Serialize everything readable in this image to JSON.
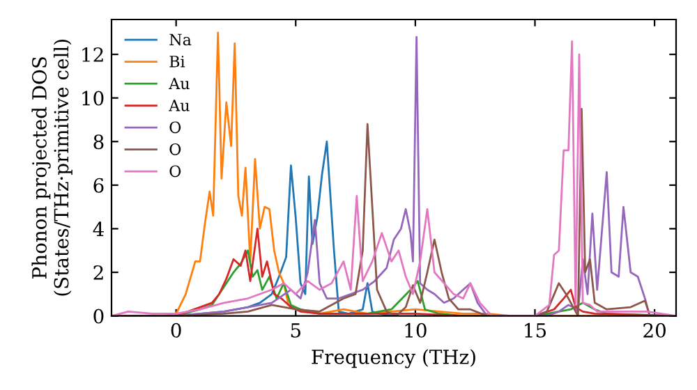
{
  "chart_data": {
    "type": "line",
    "xlabel": "Frequency (THz)",
    "ylabel": "Phonon projected DOS\n(States/THz·primitive cell)",
    "xlim": [
      -2.7,
      20.9
    ],
    "ylim": [
      0,
      13.6
    ],
    "xticks": [
      0,
      5,
      10,
      15,
      20
    ],
    "yticks": [
      0,
      2,
      4,
      6,
      8,
      10,
      12
    ],
    "grid": false,
    "legend": "top left",
    "marker": "none",
    "line_style": "solid",
    "series": [
      {
        "name": "Na",
        "color": "#1f77b4",
        "x": [
          -2.7,
          0,
          2,
          3,
          3.5,
          4,
          4.3,
          4.6,
          4.8,
          5.0,
          5.2,
          5.4,
          5.55,
          5.7,
          5.9,
          6.1,
          6.3,
          6.6,
          6.8,
          7.2,
          7.8,
          8.0,
          8.2,
          8.5,
          9
        ],
        "values": [
          0,
          0,
          0.2,
          0.4,
          0.6,
          1.0,
          1.8,
          2.7,
          6.9,
          4.5,
          1.5,
          1.0,
          6.4,
          3.3,
          4.5,
          6.5,
          8.0,
          3.0,
          0.2,
          0.1,
          0.3,
          1.5,
          0.2,
          0.1,
          0
        ]
      },
      {
        "name": "Bi",
        "color": "#ff7f0e",
        "x": [
          -2.7,
          -0.5,
          0,
          0.4,
          0.8,
          1.0,
          1.2,
          1.4,
          1.55,
          1.75,
          1.9,
          2.1,
          2.3,
          2.45,
          2.6,
          2.75,
          2.9,
          3.1,
          3.3,
          3.5,
          3.7,
          3.9,
          4.1,
          4.3,
          4.5,
          4.7,
          5.0,
          5.5,
          6.0,
          7,
          8,
          9,
          10,
          11,
          12,
          13,
          14,
          20.9
        ],
        "values": [
          0,
          0,
          0.1,
          1.0,
          2.5,
          2.5,
          4.2,
          5.7,
          4.6,
          13.0,
          6.3,
          9.8,
          7.8,
          12.5,
          5.5,
          4.6,
          6.8,
          2.5,
          7.2,
          4.0,
          5.0,
          4.9,
          3.0,
          2.0,
          1.5,
          0.5,
          0.3,
          0.2,
          0.1,
          0.3,
          0.1,
          0.2,
          0.3,
          0.2,
          0.1,
          0.1,
          0,
          0
        ]
      },
      {
        "name": "Au",
        "color": "#2ca02c",
        "x": [
          -2.7,
          0,
          1,
          1.5,
          1.8,
          2.1,
          2.4,
          2.7,
          3.0,
          3.2,
          3.4,
          3.6,
          3.9,
          4.2,
          4.5,
          4.8,
          5.2,
          5.6,
          6.0,
          7,
          8,
          9,
          9.8,
          10.1,
          10.4,
          11,
          12,
          15,
          16,
          16.5,
          17,
          17.5,
          18,
          20.9
        ],
        "values": [
          0,
          0,
          0.3,
          0.5,
          1.0,
          1.5,
          2.0,
          2.4,
          3.0,
          1.8,
          2.1,
          1.2,
          1.8,
          0.8,
          1.5,
          0.5,
          0.3,
          0.2,
          0.1,
          0.1,
          0.1,
          0.3,
          1.2,
          1.6,
          0.3,
          0.1,
          0,
          0,
          0.2,
          0.3,
          0.6,
          0.3,
          0.1,
          0
        ]
      },
      {
        "name": "Au",
        "color": "#d62728",
        "x": [
          -2.7,
          0,
          0.5,
          1,
          1.5,
          1.8,
          2.1,
          2.4,
          2.7,
          2.9,
          3.1,
          3.4,
          3.6,
          3.8,
          4.1,
          4.4,
          4.8,
          5.2,
          6,
          8,
          10,
          12,
          15,
          15.8,
          16.2,
          16.5,
          16.7,
          17,
          17.5,
          20.9
        ],
        "values": [
          0,
          0,
          0.2,
          0.4,
          0.6,
          1.0,
          1.7,
          2.6,
          2.3,
          3.0,
          1.6,
          4.0,
          1.8,
          2.5,
          1.0,
          0.8,
          0.4,
          0.2,
          0.1,
          0.1,
          0.1,
          0,
          0,
          0.3,
          0.8,
          1.2,
          0.4,
          0.2,
          0.1,
          0
        ]
      },
      {
        "name": "O",
        "color": "#9467bd",
        "x": [
          -2.7,
          0,
          2,
          3,
          4,
          4.8,
          5.2,
          5.5,
          5.8,
          6.0,
          6.3,
          6.8,
          7.3,
          7.8,
          8.3,
          8.8,
          9.1,
          9.4,
          9.6,
          9.8,
          9.9,
          10.05,
          10.2,
          10.5,
          10.8,
          11.2,
          11.6,
          12.0,
          12.3,
          12.6,
          13.0,
          15.5,
          16.0,
          16.4,
          16.6,
          16.8,
          17.0,
          17.2,
          17.4,
          17.6,
          18.0,
          18.2,
          18.5,
          18.7,
          19.0,
          19.3,
          19.6,
          19.8,
          20.9
        ],
        "values": [
          0,
          0,
          0.2,
          0.4,
          0.6,
          1.2,
          0.8,
          2.0,
          4.4,
          1.5,
          0.8,
          0.8,
          1.0,
          1.2,
          1.6,
          2.2,
          3.5,
          4.0,
          4.9,
          3.8,
          2.5,
          12.8,
          1.5,
          1.2,
          1.0,
          0.6,
          0.8,
          1.2,
          1.5,
          0.6,
          0,
          0,
          0.2,
          0.5,
          0.4,
          0.2,
          2.6,
          1.0,
          4.7,
          1.2,
          6.6,
          2.0,
          1.8,
          5.0,
          2.0,
          1.8,
          0.8,
          0,
          0
        ]
      },
      {
        "name": "O",
        "color": "#8c564b",
        "x": [
          -2.7,
          0,
          2,
          3,
          4,
          5,
          6,
          7,
          7.5,
          7.8,
          8.0,
          8.2,
          8.4,
          8.8,
          9.2,
          9.6,
          9.9,
          10.2,
          10.5,
          10.8,
          11.1,
          11.4,
          11.8,
          12.3,
          13,
          15,
          15.5,
          16.0,
          16.3,
          16.6,
          16.8,
          16.95,
          17.1,
          17.3,
          17.5,
          18,
          19,
          19.6,
          19.8,
          20.9
        ],
        "values": [
          0,
          0,
          0.1,
          0.2,
          0.5,
          0.3,
          0.2,
          0.8,
          1.0,
          3.0,
          8.8,
          5.0,
          1.2,
          0.2,
          0,
          0.4,
          1.4,
          0.6,
          2.0,
          3.5,
          2.0,
          0.8,
          0.3,
          0.3,
          0,
          0,
          0.2,
          1.5,
          1.0,
          0.4,
          0,
          9.5,
          2.0,
          2.6,
          0.6,
          0.3,
          0.4,
          0.7,
          0,
          0
        ]
      },
      {
        "name": "O",
        "color": "#e377c2",
        "x": [
          -2.7,
          -2,
          -1,
          0,
          1,
          2,
          3,
          4,
          4.5,
          5,
          5.5,
          6,
          6.5,
          7.0,
          7.3,
          7.55,
          7.8,
          8.2,
          8.6,
          9.0,
          9.3,
          9.6,
          9.9,
          10.2,
          10.5,
          10.8,
          11.2,
          11.6,
          12,
          12.3,
          12.7,
          13.2,
          15,
          15.6,
          15.8,
          16.0,
          16.2,
          16.4,
          16.55,
          16.7,
          16.85,
          17.0,
          17.3,
          17.6,
          18,
          19,
          19.7,
          20.9
        ],
        "values": [
          0,
          0.2,
          0.1,
          0.1,
          0.3,
          0.6,
          0.8,
          1.2,
          1.5,
          1.0,
          1.6,
          1.2,
          1.5,
          2.5,
          1.2,
          5.5,
          1.6,
          2.5,
          3.8,
          2.5,
          3.0,
          1.8,
          1.0,
          2.5,
          4.9,
          2.0,
          1.5,
          1.0,
          0.8,
          1.5,
          0.6,
          0,
          0,
          0.5,
          2.8,
          3.0,
          7.6,
          7.6,
          12.6,
          0.5,
          12.0,
          0.6,
          0.5,
          0.2,
          0.2,
          0.2,
          0.2,
          0
        ]
      }
    ]
  }
}
